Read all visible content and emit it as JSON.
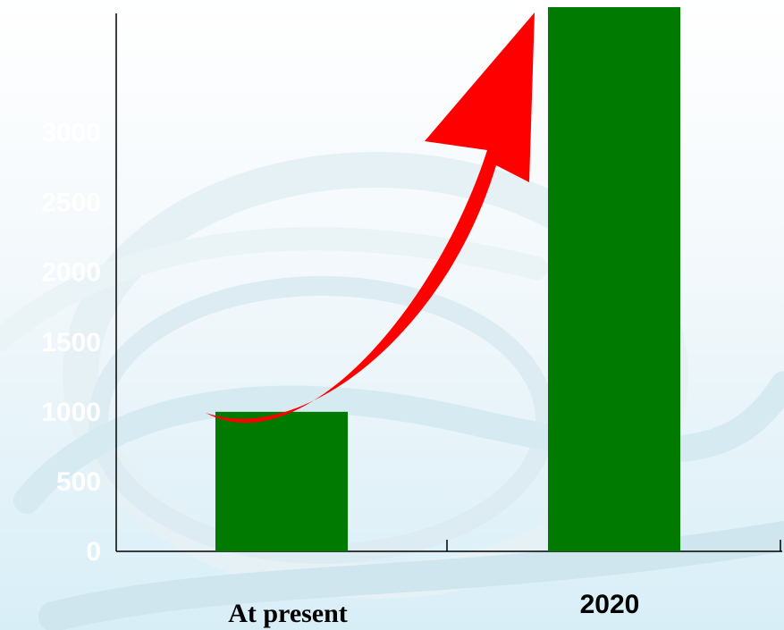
{
  "chart_data": {
    "type": "bar",
    "categories": [
      "At present",
      "2020"
    ],
    "values": [
      1000,
      3900
    ],
    "title": "",
    "xlabel": "",
    "ylabel": "",
    "ylim": [
      0,
      3900
    ],
    "y_ticks": [
      "0",
      "500",
      "1000",
      "1500",
      "2000",
      "2500",
      "3000"
    ],
    "bar_color": "#007a00",
    "arrow_color": "#ff0000",
    "tick_label_color": "#ffffff",
    "grid": false
  }
}
